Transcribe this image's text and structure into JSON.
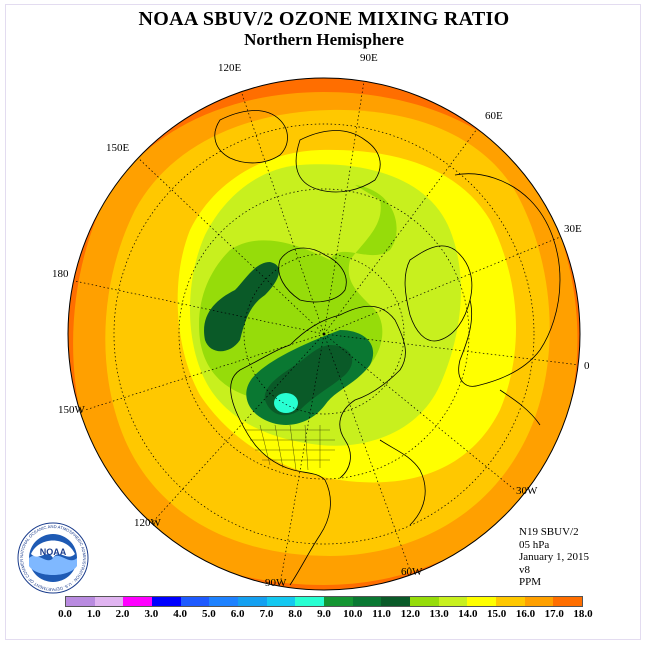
{
  "title": "NOAA SBUV/2 OZONE MIXING RATIO",
  "subtitle": "Northern Hemisphere",
  "longitude_labels": [
    {
      "text": "90E",
      "id": "lon-90e"
    },
    {
      "text": "120E",
      "id": "lon-120e"
    },
    {
      "text": "60E",
      "id": "lon-60e"
    },
    {
      "text": "150E",
      "id": "lon-150e"
    },
    {
      "text": "30E",
      "id": "lon-30e"
    },
    {
      "text": "180",
      "id": "lon-180"
    },
    {
      "text": "0",
      "id": "lon-0"
    },
    {
      "text": "150W",
      "id": "lon-150w"
    },
    {
      "text": "30W",
      "id": "lon-30w"
    },
    {
      "text": "120W",
      "id": "lon-120w"
    },
    {
      "text": "60W",
      "id": "lon-60w"
    },
    {
      "text": "90W",
      "id": "lon-90w"
    }
  ],
  "info": {
    "satellite": "N19 SBUV/2",
    "pressure": "05 hPa",
    "date": "January 1, 2015",
    "version": "v8",
    "units": "PPM"
  },
  "colorbar": {
    "ticks": [
      "0.0",
      "1.0",
      "2.0",
      "3.0",
      "4.0",
      "5.0",
      "6.0",
      "7.0",
      "8.0",
      "9.0",
      "10.0",
      "11.0",
      "12.0",
      "13.0",
      "14.0",
      "15.0",
      "16.0",
      "17.0",
      "18.0"
    ],
    "colors": [
      "#b98be0",
      "#e0b4f0",
      "#ff00ff",
      "#0000ff",
      "#1e5aff",
      "#1e82ff",
      "#14a0f0",
      "#14c8f0",
      "#28ffd2",
      "#149632",
      "#0a7832",
      "#0a5a28",
      "#96dc0a",
      "#c8f01e",
      "#ffff00",
      "#ffc800",
      "#ffa000",
      "#ff6e00",
      "#e60000",
      "#8c5032"
    ]
  },
  "logo_text": "NOAA",
  "logo_ring_text": "NATIONAL OCEANIC AND ATMOSPHERIC ADMINISTRATION · U.S. DEPARTMENT OF COMMERCE"
}
